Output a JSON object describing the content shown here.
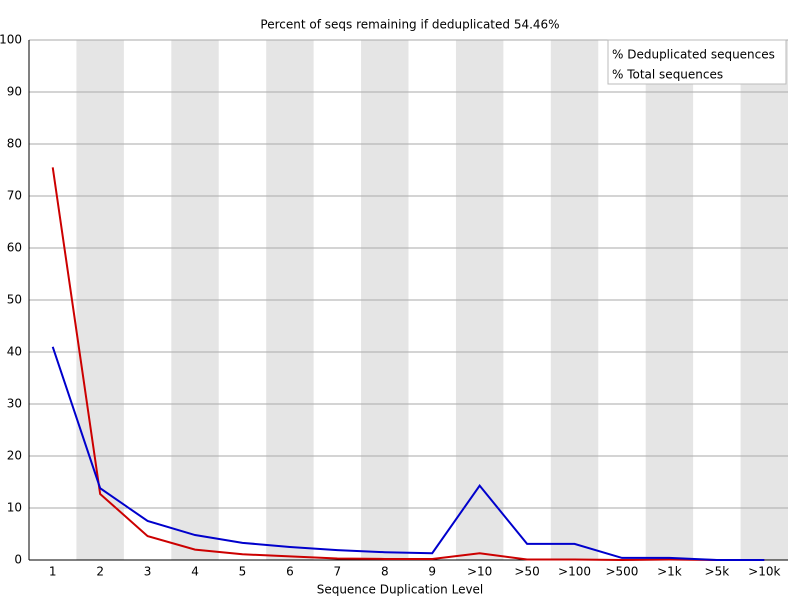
{
  "chart_data": {
    "type": "line",
    "title": "Percent of seqs remaining if deduplicated 54.46%",
    "x_label": "Sequence Duplication Level",
    "categories": [
      "1",
      "2",
      "3",
      "4",
      "5",
      "6",
      "7",
      "8",
      "9",
      ">10",
      ">50",
      ">100",
      ">500",
      ">1k",
      ">5k",
      ">10k"
    ],
    "series": [
      {
        "name": "% Deduplicated sequences",
        "color": "#cc0000",
        "values": [
          75.5,
          12.7,
          4.6,
          2.0,
          1.1,
          0.7,
          0.3,
          0.2,
          0.2,
          1.3,
          0.1,
          0.1,
          0.0,
          0.1,
          0.0,
          0.0
        ]
      },
      {
        "name": "% Total sequences",
        "color": "#0000cc",
        "values": [
          41.0,
          13.8,
          7.5,
          4.8,
          3.3,
          2.5,
          1.9,
          1.5,
          1.3,
          14.3,
          3.1,
          3.1,
          0.4,
          0.4,
          0.0,
          0.0
        ]
      }
    ],
    "ylim": [
      0,
      100
    ],
    "yticks": [
      0,
      10,
      20,
      30,
      40,
      50,
      60,
      70,
      80,
      90,
      100
    ],
    "grid": true,
    "legend": "top-right"
  }
}
